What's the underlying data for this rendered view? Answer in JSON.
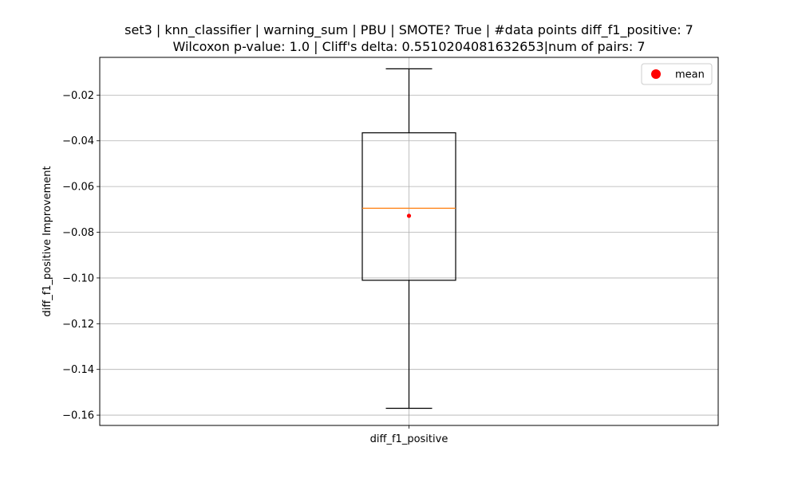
{
  "chart_data": {
    "type": "box",
    "title_line1": "set3 | knn_classifier | warning_sum | PBU | SMOTE? True | #data points diff_f1_positive: 7",
    "title_line2": "Wilcoxon p-value: 1.0 | Cliff's delta: 0.5510204081632653|num of pairs: 7",
    "xlabel": "",
    "ylabel": "diff_f1_positive Improvement",
    "categories": [
      "diff_f1_positive"
    ],
    "ylim": [
      -0.1645,
      -0.0035
    ],
    "yticks": [
      -0.02,
      -0.04,
      -0.06,
      -0.08,
      -0.1,
      -0.12,
      -0.14,
      -0.16
    ],
    "ytick_labels": [
      "−0.02",
      "−0.04",
      "−0.06",
      "−0.08",
      "−0.10",
      "−0.12",
      "−0.14",
      "−0.16"
    ],
    "grid": true,
    "box": {
      "whisker_high": -0.0085,
      "q3": -0.0365,
      "median": -0.0695,
      "q1": -0.101,
      "whisker_low": -0.157,
      "mean": -0.0728
    },
    "legend": {
      "placement": "top-right",
      "entries": [
        {
          "label": "mean",
          "color": "#ff0000",
          "marker": "circle"
        }
      ]
    },
    "colors": {
      "box": "#000000",
      "median": "#ff7f0e",
      "mean": "#ff0000",
      "grid": "#b0b0b0"
    }
  }
}
